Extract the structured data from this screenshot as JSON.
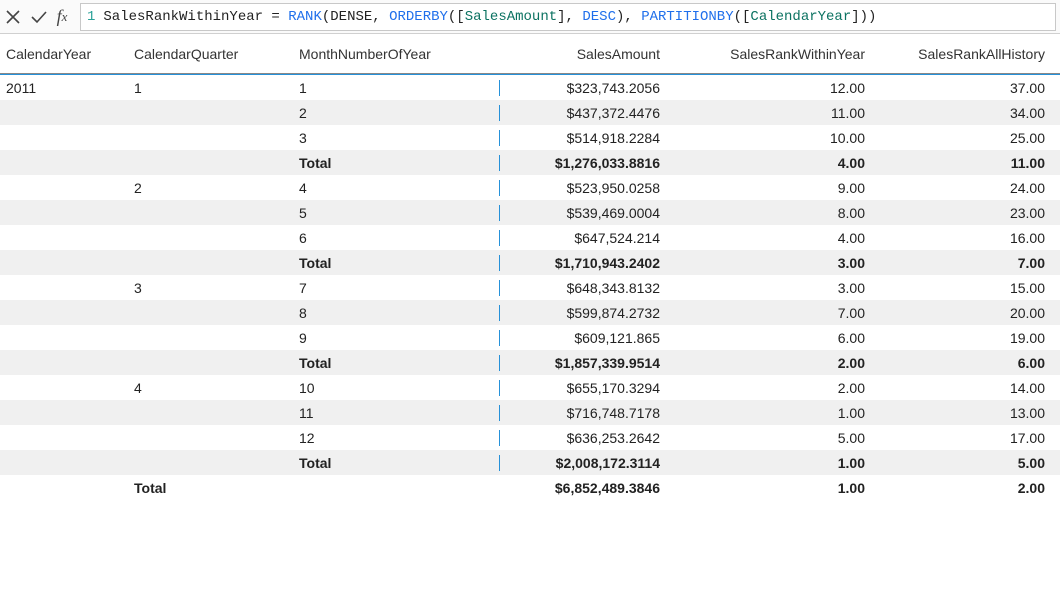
{
  "formula_bar": {
    "line_number": "1",
    "tokens": [
      {
        "t": "plain",
        "v": "SalesRankWithinYear = "
      },
      {
        "t": "fn",
        "v": "RANK"
      },
      {
        "t": "plain",
        "v": "("
      },
      {
        "t": "plain",
        "v": "DENSE"
      },
      {
        "t": "plain",
        "v": ", "
      },
      {
        "t": "fn",
        "v": "ORDERBY"
      },
      {
        "t": "plain",
        "v": "(["
      },
      {
        "t": "col",
        "v": "SalesAmount"
      },
      {
        "t": "plain",
        "v": "], "
      },
      {
        "t": "kw",
        "v": "DESC"
      },
      {
        "t": "plain",
        "v": "), "
      },
      {
        "t": "fn",
        "v": "PARTITIONBY"
      },
      {
        "t": "plain",
        "v": "(["
      },
      {
        "t": "col",
        "v": "CalendarYear"
      },
      {
        "t": "plain",
        "v": "]))"
      }
    ]
  },
  "columns": {
    "year": "CalendarYear",
    "qtr": "CalendarQuarter",
    "month": "MonthNumberOfYear",
    "sales": "SalesAmount",
    "rankY": "SalesRankWithinYear",
    "rankA": "SalesRankAllHistory"
  },
  "rows": [
    {
      "year": "2011",
      "qtr": "1",
      "month": "1",
      "sales": "$323,743.2056",
      "rankY": "12.00",
      "rankA": "37.00",
      "alt": false,
      "total": false
    },
    {
      "year": "",
      "qtr": "",
      "month": "2",
      "sales": "$437,372.4476",
      "rankY": "11.00",
      "rankA": "34.00",
      "alt": true,
      "total": false
    },
    {
      "year": "",
      "qtr": "",
      "month": "3",
      "sales": "$514,918.2284",
      "rankY": "10.00",
      "rankA": "25.00",
      "alt": false,
      "total": false
    },
    {
      "year": "",
      "qtr": "",
      "month": "Total",
      "sales": "$1,276,033.8816",
      "rankY": "4.00",
      "rankA": "11.00",
      "alt": true,
      "total": true
    },
    {
      "year": "",
      "qtr": "2",
      "month": "4",
      "sales": "$523,950.0258",
      "rankY": "9.00",
      "rankA": "24.00",
      "alt": false,
      "total": false
    },
    {
      "year": "",
      "qtr": "",
      "month": "5",
      "sales": "$539,469.0004",
      "rankY": "8.00",
      "rankA": "23.00",
      "alt": true,
      "total": false
    },
    {
      "year": "",
      "qtr": "",
      "month": "6",
      "sales": "$647,524.214",
      "rankY": "4.00",
      "rankA": "16.00",
      "alt": false,
      "total": false
    },
    {
      "year": "",
      "qtr": "",
      "month": "Total",
      "sales": "$1,710,943.2402",
      "rankY": "3.00",
      "rankA": "7.00",
      "alt": true,
      "total": true
    },
    {
      "year": "",
      "qtr": "3",
      "month": "7",
      "sales": "$648,343.8132",
      "rankY": "3.00",
      "rankA": "15.00",
      "alt": false,
      "total": false
    },
    {
      "year": "",
      "qtr": "",
      "month": "8",
      "sales": "$599,874.2732",
      "rankY": "7.00",
      "rankA": "20.00",
      "alt": true,
      "total": false
    },
    {
      "year": "",
      "qtr": "",
      "month": "9",
      "sales": "$609,121.865",
      "rankY": "6.00",
      "rankA": "19.00",
      "alt": false,
      "total": false
    },
    {
      "year": "",
      "qtr": "",
      "month": "Total",
      "sales": "$1,857,339.9514",
      "rankY": "2.00",
      "rankA": "6.00",
      "alt": true,
      "total": true
    },
    {
      "year": "",
      "qtr": "4",
      "month": "10",
      "sales": "$655,170.3294",
      "rankY": "2.00",
      "rankA": "14.00",
      "alt": false,
      "total": false
    },
    {
      "year": "",
      "qtr": "",
      "month": "11",
      "sales": "$716,748.7178",
      "rankY": "1.00",
      "rankA": "13.00",
      "alt": true,
      "total": false
    },
    {
      "year": "",
      "qtr": "",
      "month": "12",
      "sales": "$636,253.2642",
      "rankY": "5.00",
      "rankA": "17.00",
      "alt": false,
      "total": false
    },
    {
      "year": "",
      "qtr": "",
      "month": "Total",
      "sales": "$2,008,172.3114",
      "rankY": "1.00",
      "rankA": "5.00",
      "alt": true,
      "total": true
    },
    {
      "year": "",
      "qtr": "Total",
      "month": "",
      "sales": "$6,852,489.3846",
      "rankY": "1.00",
      "rankA": "2.00",
      "alt": false,
      "total": true
    }
  ]
}
